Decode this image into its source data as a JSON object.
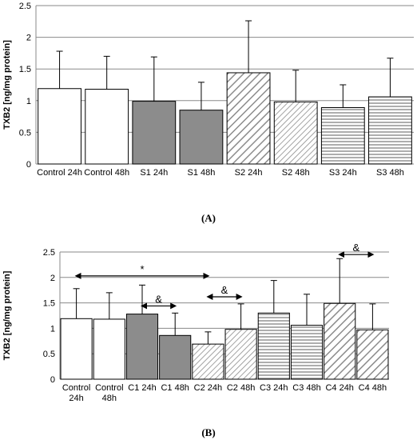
{
  "figure": {
    "caption_a": "(A)",
    "caption_b": "(B)"
  },
  "chart_data": [
    {
      "type": "bar",
      "panel": "A",
      "ylabel": "TXB2 [ng/mg protein]",
      "xlabel": "",
      "ylim": [
        0,
        2.5
      ],
      "yticks": [
        "0",
        "0.5",
        "1",
        "1.5",
        "2",
        "2.5"
      ],
      "grid": true,
      "categories": [
        "Control 24h",
        "Control 48h",
        "S1 24h",
        "S1 48h",
        "S2 24h",
        "S2 48h",
        "S3 24h",
        "S3 48h"
      ],
      "values": [
        1.19,
        1.18,
        0.99,
        0.85,
        1.44,
        0.98,
        0.89,
        1.06
      ],
      "errors": [
        0.59,
        0.52,
        0.7,
        0.44,
        0.82,
        0.5,
        0.36,
        0.61
      ],
      "fills": [
        "white",
        "white",
        "gray",
        "gray",
        "diag-wide",
        "diag-narrow",
        "horiz",
        "horiz"
      ],
      "annotations": []
    },
    {
      "type": "bar",
      "panel": "B",
      "ylabel": "TXB2 [ng/mg protein]",
      "xlabel": "",
      "ylim": [
        0,
        2.5
      ],
      "yticks": [
        "0",
        "0.5",
        "1",
        "1.5",
        "2",
        "2.5"
      ],
      "grid": true,
      "categories": [
        "Control 24h",
        "Control 48h",
        "C1 24h",
        "C1 48h",
        "C2 24h",
        "C2 48h",
        "C3 24h",
        "C3 48h",
        "C4 24h",
        "C4 48h"
      ],
      "values": [
        1.19,
        1.18,
        1.28,
        0.86,
        0.69,
        0.98,
        1.3,
        1.06,
        1.49,
        0.97
      ],
      "errors": [
        0.59,
        0.52,
        0.57,
        0.44,
        0.24,
        0.5,
        0.64,
        0.61,
        0.88,
        0.51
      ],
      "fills": [
        "white",
        "white",
        "gray",
        "gray",
        "diag-narrow",
        "diag-narrow",
        "horiz",
        "horiz",
        "diag-wide",
        "diag-wide"
      ],
      "annotations": [
        {
          "text": "*",
          "from": 0,
          "to": 4,
          "y": 2.03
        },
        {
          "text": "&",
          "from": 2,
          "to": 3,
          "y": 1.44
        },
        {
          "text": "&",
          "from": 4,
          "to": 5,
          "y": 1.62
        },
        {
          "text": "&",
          "from": 8,
          "to": 9,
          "y": 2.45
        }
      ]
    }
  ]
}
